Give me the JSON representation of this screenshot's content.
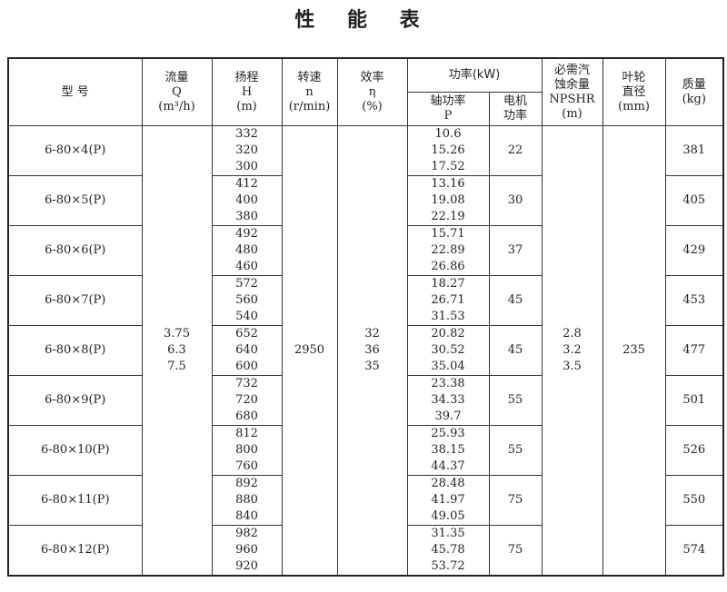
{
  "title": "性 能 表",
  "headers": {
    "model": "型  号",
    "flow": [
      "流量",
      "Q",
      "(m³/h)"
    ],
    "head": [
      "扬程",
      "H",
      "(m)"
    ],
    "speed": [
      "转速",
      "n",
      "(r/min)"
    ],
    "efficiency": [
      "效率",
      "η",
      "(%)"
    ],
    "power": "功率(kW)",
    "shaft_power": [
      "轴功率",
      "P"
    ],
    "motor_power": [
      "电机",
      "功率"
    ],
    "npshr": [
      "必需汽",
      "蚀余量",
      "NPSHR",
      "(m)"
    ],
    "impeller": [
      "叶轮",
      "直径",
      "(mm)"
    ],
    "mass": [
      "质量",
      "(kg)"
    ]
  },
  "shared": {
    "flow": [
      "3.75",
      "6.3",
      "7.5"
    ],
    "speed": "2950",
    "efficiency": [
      "32",
      "36",
      "35"
    ],
    "npshr": [
      "2.8",
      "3.2",
      "3.5"
    ],
    "impeller": "235"
  },
  "rows": [
    {
      "model": "6-80×4(P)",
      "heads": [
        "332",
        "320",
        "300"
      ],
      "shaft_power": [
        "10.6",
        "15.26",
        "17.52"
      ],
      "motor_power": "22",
      "mass": "381"
    },
    {
      "model": "6-80×5(P)",
      "heads": [
        "412",
        "400",
        "380"
      ],
      "shaft_power": [
        "13.16",
        "19.08",
        "22.19"
      ],
      "motor_power": "30",
      "mass": "405"
    },
    {
      "model": "6-80×6(P)",
      "heads": [
        "492",
        "480",
        "460"
      ],
      "shaft_power": [
        "15.71",
        "22.89",
        "26.86"
      ],
      "motor_power": "37",
      "mass": "429"
    },
    {
      "model": "6-80×7(P)",
      "heads": [
        "572",
        "560",
        "540"
      ],
      "shaft_power": [
        "18.27",
        "26.71",
        "31.53"
      ],
      "motor_power": "45",
      "mass": "453"
    },
    {
      "model": "6-80×8(P)",
      "heads": [
        "652",
        "640",
        "600"
      ],
      "shaft_power": [
        "20.82",
        "30.52",
        "35.04"
      ],
      "motor_power": "45",
      "mass": "477"
    },
    {
      "model": "6-80×9(P)",
      "heads": [
        "732",
        "720",
        "680"
      ],
      "shaft_power": [
        "23.38",
        "34.33",
        "39.7"
      ],
      "motor_power": "55",
      "mass": "501"
    },
    {
      "model": "6-80×10(P)",
      "heads": [
        "812",
        "800",
        "760"
      ],
      "shaft_power": [
        "25.93",
        "38.15",
        "44.37"
      ],
      "motor_power": "55",
      "mass": "526"
    },
    {
      "model": "6-80×11(P)",
      "heads": [
        "892",
        "880",
        "840"
      ],
      "shaft_power": [
        "28.48",
        "41.97",
        "49.05"
      ],
      "motor_power": "75",
      "mass": "550"
    },
    {
      "model": "6-80×12(P)",
      "heads": [
        "982",
        "960",
        "920"
      ],
      "shaft_power": [
        "31.35",
        "45.78",
        "53.72"
      ],
      "motor_power": "75",
      "mass": "574"
    }
  ]
}
